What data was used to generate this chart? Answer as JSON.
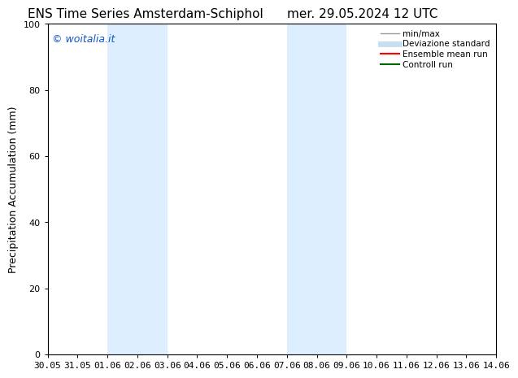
{
  "title_left": "ENS Time Series Amsterdam-Schiphol",
  "title_right": "mer. 29.05.2024 12 UTC",
  "ylabel": "Precipitation Accumulation (mm)",
  "watermark": "© woitalia.it",
  "watermark_color": "#1155cc",
  "ylim": [
    0,
    100
  ],
  "yticks": [
    0,
    20,
    40,
    60,
    80,
    100
  ],
  "xtick_labels": [
    "30.05",
    "31.05",
    "01.06",
    "02.06",
    "03.06",
    "04.06",
    "05.06",
    "06.06",
    "07.06",
    "08.06",
    "09.06",
    "10.06",
    "11.06",
    "12.06",
    "13.06",
    "14.06"
  ],
  "background_color": "#ffffff",
  "plot_bg_color": "#ffffff",
  "shade_regions": [
    {
      "xstart": 2,
      "xend": 4,
      "color": "#ddeeff"
    },
    {
      "xstart": 8,
      "xend": 10,
      "color": "#ddeeff"
    }
  ],
  "legend_entries": [
    {
      "label": "min/max",
      "color": "#999999",
      "lw": 1.0
    },
    {
      "label": "Deviazione standard",
      "color": "#c8dff0",
      "lw": 5
    },
    {
      "label": "Ensemble mean run",
      "color": "#ff0000",
      "lw": 1.5
    },
    {
      "label": "Controll run",
      "color": "#006600",
      "lw": 1.5
    }
  ],
  "title_fontsize": 11,
  "tick_label_fontsize": 8,
  "axis_label_fontsize": 9,
  "watermark_fontsize": 9,
  "legend_fontsize": 7.5
}
